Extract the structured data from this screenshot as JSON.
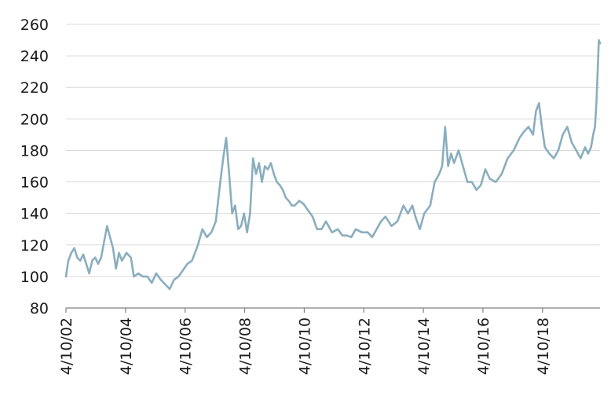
{
  "chart_data": {
    "type": "line",
    "title": "",
    "xlabel": "",
    "ylabel": "",
    "ylim": [
      80,
      260
    ],
    "yticks": [
      80,
      100,
      120,
      140,
      160,
      180,
      200,
      220,
      240,
      260
    ],
    "xticks": [
      "4/10/02",
      "4/10/04",
      "4/10/06",
      "4/10/08",
      "4/10/10",
      "4/10/12",
      "4/10/14",
      "4/10/16",
      "4/10/18"
    ],
    "xlim": [
      2002.27,
      2020.2
    ],
    "grid": "horizontal",
    "legend": "none",
    "color": "#8aaebf",
    "series": [
      {
        "x": [
          2002.27,
          2002.35,
          2002.45,
          2002.55,
          2002.65,
          2002.75,
          2002.85,
          2002.95,
          2003.05,
          2003.15,
          2003.25,
          2003.35,
          2003.45,
          2003.55,
          2003.65,
          2003.75,
          2003.85,
          2003.95,
          2004.05,
          2004.15,
          2004.3,
          2004.45,
          2004.55,
          2004.7,
          2004.85,
          2005.0,
          2005.15,
          2005.3,
          2005.45,
          2005.6,
          2005.75,
          2005.9,
          2006.05,
          2006.2,
          2006.35,
          2006.5,
          2006.6,
          2006.7,
          2006.85,
          2007.0,
          2007.15,
          2007.3,
          2007.45,
          2007.55,
          2007.65,
          2007.75,
          2007.85,
          2007.95,
          2008.05,
          2008.15,
          2008.25,
          2008.35,
          2008.45,
          2008.55,
          2008.65,
          2008.75,
          2008.85,
          2008.95,
          2009.05,
          2009.15,
          2009.25,
          2009.35,
          2009.45,
          2009.55,
          2009.65,
          2009.75,
          2009.85,
          2009.95,
          2010.1,
          2010.25,
          2010.4,
          2010.55,
          2010.7,
          2010.85,
          2011.0,
          2011.2,
          2011.4,
          2011.55,
          2011.7,
          2011.85,
          2012.0,
          2012.2,
          2012.4,
          2012.55,
          2012.7,
          2012.85,
          2013.0,
          2013.2,
          2013.4,
          2013.6,
          2013.75,
          2013.9,
          2014.0,
          2014.15,
          2014.3,
          2014.5,
          2014.65,
          2014.8,
          2014.9,
          2015.0,
          2015.1,
          2015.2,
          2015.3,
          2015.45,
          2015.6,
          2015.75,
          2015.9,
          2016.05,
          2016.2,
          2016.35,
          2016.5,
          2016.7,
          2016.9,
          2017.1,
          2017.3,
          2017.5,
          2017.65,
          2017.8,
          2017.95,
          2018.05,
          2018.15,
          2018.25,
          2018.35,
          2018.5,
          2018.65,
          2018.8,
          2018.95,
          2019.1,
          2019.25,
          2019.4,
          2019.55,
          2019.7,
          2019.8,
          2019.9,
          2019.97,
          2020.03,
          2020.08,
          2020.12,
          2020.16,
          2020.2
        ],
        "y": [
          100,
          110,
          115,
          118,
          112,
          110,
          114,
          108,
          102,
          110,
          112,
          108,
          112,
          122,
          132,
          125,
          118,
          105,
          115,
          110,
          115,
          112,
          100,
          102,
          100,
          100,
          96,
          102,
          98,
          95,
          92,
          98,
          100,
          104,
          108,
          110,
          115,
          120,
          130,
          125,
          128,
          135,
          160,
          175,
          188,
          165,
          140,
          145,
          130,
          132,
          140,
          128,
          140,
          175,
          165,
          172,
          160,
          170,
          168,
          172,
          165,
          160,
          158,
          155,
          150,
          148,
          145,
          145,
          148,
          146,
          142,
          138,
          130,
          130,
          135,
          128,
          130,
          126,
          126,
          125,
          130,
          128,
          128,
          125,
          130,
          135,
          138,
          132,
          135,
          145,
          140,
          145,
          138,
          130,
          140,
          145,
          160,
          165,
          170,
          195,
          170,
          178,
          172,
          180,
          170,
          160,
          160,
          155,
          158,
          168,
          162,
          160,
          165,
          175,
          180,
          188,
          192,
          195,
          190,
          205,
          210,
          195,
          182,
          178,
          175,
          180,
          190,
          195,
          185,
          180,
          175,
          182,
          178,
          182,
          190,
          195,
          210,
          230,
          250,
          248
        ]
      }
    ]
  }
}
